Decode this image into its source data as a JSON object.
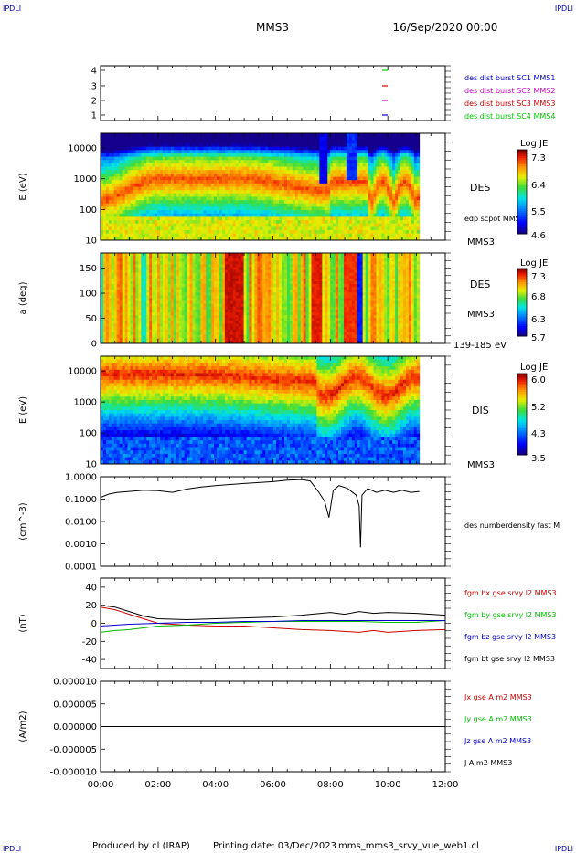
{
  "corner_mark": "IPDLI",
  "header": {
    "mission": "MMS3",
    "date": "16/Sep/2020 00:00"
  },
  "footer": {
    "produced_by": "Produced by cl (IRAP)",
    "printing_date": "Printing date: 03/Dec/2023",
    "script_name": "mms_mms3_srvy_vue_web1.cl"
  },
  "colors": {
    "mms1": "#0000cc",
    "mms2": "#cc00cc",
    "mms3": "#cc0000",
    "mms4": "#00cc00",
    "bx": "#cc0000",
    "by": "#00bb00",
    "bz": "#0000cc",
    "bt": "#000000"
  },
  "chart_data": [
    {
      "type": "scatter",
      "ytick_labels": [
        "1",
        "2",
        "3",
        "4"
      ],
      "ylim": [
        0.5,
        4.5
      ],
      "xlim": [
        0,
        12
      ],
      "legend": [
        "des dist burst SC1 MMS1",
        "des dist burst SC2 MMS2",
        "des dist burst SC3 MMS3",
        "des dist burst SC4 MMS4"
      ],
      "markers": [
        {
          "x": 9.9,
          "y": 4,
          "color": "#00cc00"
        },
        {
          "x": 9.9,
          "y": 3,
          "color": "#cc0000"
        },
        {
          "x": 9.9,
          "y": 2,
          "color": "#cc00cc"
        },
        {
          "x": 9.9,
          "y": 1,
          "color": "#0000cc"
        }
      ]
    },
    {
      "type": "heatmap",
      "ylabel": "E (eV)",
      "yscale": "log",
      "ylim": [
        10,
        30000
      ],
      "ytick_labels": [
        "10",
        "100",
        "1000",
        "10000"
      ],
      "xlim": [
        0,
        12
      ],
      "data_end": 11.1,
      "right_labels": [
        "DES",
        "edp scpot MMS3",
        "MMS3"
      ],
      "colorbar": {
        "title": "Log JE",
        "ticks": [
          "7.3",
          "6.4",
          "5.5",
          "4.6"
        ],
        "min": 4.6,
        "max": 7.3
      }
    },
    {
      "type": "heatmap",
      "ylabel": "a (deg)",
      "ylim": [
        0,
        180
      ],
      "ytick_labels": [
        "0",
        "50",
        "100",
        "150"
      ],
      "xlim": [
        0,
        12
      ],
      "data_end": 11.1,
      "right_labels": [
        "DES",
        "MMS3",
        "139-185 eV"
      ],
      "colorbar": {
        "title": "Log JE",
        "ticks": [
          "7.3",
          "6.8",
          "6.3",
          "5.7"
        ],
        "min": 5.7,
        "max": 7.3
      }
    },
    {
      "type": "heatmap",
      "ylabel": "E (eV)",
      "yscale": "log",
      "ylim": [
        10,
        30000
      ],
      "ytick_labels": [
        "10",
        "100",
        "1000",
        "10000"
      ],
      "xlim": [
        0,
        12
      ],
      "data_end": 11.1,
      "right_labels": [
        "DIS",
        "MMS3"
      ],
      "colorbar": {
        "title": "Log JE",
        "ticks": [
          "6.0",
          "5.2",
          "4.3",
          "3.5"
        ],
        "min": 3.5,
        "max": 6.0
      }
    },
    {
      "type": "line",
      "ylabel": "(cm^-3)",
      "yscale": "log",
      "ylim": [
        0.0001,
        1.0
      ],
      "ytick_labels": [
        "0.0001",
        "0.0010",
        "0.0100",
        "0.1000",
        "1.0000"
      ],
      "xlim": [
        0,
        12
      ],
      "legend": [
        "des numberdensity fast M"
      ],
      "series": [
        {
          "x": [
            0,
            0.3,
            0.6,
            1.0,
            1.5,
            2.0,
            2.5,
            3.0,
            3.5,
            4.0,
            4.5,
            5.0,
            5.5,
            6.0,
            6.5,
            7.0,
            7.3,
            7.6,
            7.8,
            7.95,
            8.1,
            8.3,
            8.6,
            8.9,
            9.0,
            9.05,
            9.1,
            9.3,
            9.6,
            9.9,
            10.2,
            10.5,
            10.8,
            11.1
          ],
          "y": [
            0.12,
            0.17,
            0.2,
            0.22,
            0.25,
            0.24,
            0.2,
            0.28,
            0.35,
            0.4,
            0.45,
            0.5,
            0.55,
            0.6,
            0.7,
            0.75,
            0.65,
            0.2,
            0.08,
            0.015,
            0.25,
            0.4,
            0.3,
            0.15,
            0.05,
            0.0007,
            0.15,
            0.3,
            0.2,
            0.25,
            0.2,
            0.25,
            0.2,
            0.22
          ]
        }
      ]
    },
    {
      "type": "line",
      "ylabel": "(nT)",
      "ylim": [
        -50,
        50
      ],
      "ytick_labels": [
        "-40",
        "-20",
        "0",
        "20",
        "40"
      ],
      "xlim": [
        0,
        12
      ],
      "legend": [
        "fgm bx gse srvy l2 MMS3",
        "fgm by gse srvy l2 MMS3",
        "fgm bz gse srvy l2 MMS3",
        "fgm bt gse srvy l2 MMS3"
      ],
      "series": [
        {
          "name": "fgm bx gse srvy l2 MMS3",
          "color": "#cc0000",
          "x": [
            0,
            0.5,
            1.0,
            1.5,
            2.0,
            3.0,
            4.0,
            5.0,
            6.0,
            7.0,
            8.0,
            9.0,
            9.5,
            10.0,
            11.0,
            12.0
          ],
          "y": [
            18,
            15,
            10,
            5,
            0,
            -2,
            -3,
            -3,
            -5,
            -7,
            -8,
            -10,
            -8,
            -10,
            -8,
            -7
          ]
        },
        {
          "name": "fgm by gse srvy l2 MMS3",
          "color": "#00bb00",
          "x": [
            0,
            0.5,
            1.0,
            1.5,
            2.0,
            3.0,
            4.0,
            5.0,
            6.0,
            7.0,
            8.0,
            9.0,
            10.0,
            11.0,
            12.0
          ],
          "y": [
            -10,
            -8,
            -7,
            -5,
            -3,
            -2,
            0,
            1,
            2,
            2,
            2,
            2,
            1,
            1,
            3
          ]
        },
        {
          "name": "fgm bz gse srvy l2 MMS3",
          "color": "#0000cc",
          "x": [
            0,
            1.0,
            2.0,
            3.0,
            4.0,
            5.0,
            6.0,
            7.0,
            8.0,
            9.0,
            10.0,
            11.0,
            12.0
          ],
          "y": [
            -3,
            -1,
            0,
            1,
            1,
            2,
            2,
            3,
            3,
            3,
            3,
            3,
            3
          ]
        },
        {
          "name": "fgm bt gse srvy l2 MMS3",
          "color": "#000000",
          "x": [
            0,
            0.5,
            1.0,
            1.5,
            2.0,
            3.0,
            4.0,
            5.0,
            6.0,
            7.0,
            8.0,
            8.5,
            9.0,
            9.5,
            10.0,
            11.0,
            12.0
          ],
          "y": [
            20,
            18,
            13,
            8,
            5,
            4,
            5,
            6,
            7,
            9,
            12,
            10,
            13,
            11,
            12,
            11,
            9
          ]
        }
      ]
    },
    {
      "type": "line",
      "ylabel": "(A/m2)",
      "ylim": [
        -1e-05,
        1e-05
      ],
      "ytick_labels": [
        "-0.000010",
        "-0.000005",
        "0.000000",
        "0.000005",
        "0.000010"
      ],
      "xlim": [
        0,
        12
      ],
      "xtick_labels": [
        "00:00",
        "02:00",
        "04:00",
        "06:00",
        "08:00",
        "10:00",
        "12:00"
      ],
      "legend": [
        "Jx gse A m2 MMS3",
        "Jy gse A m2 MMS3",
        "Jz gse A m2 MMS3",
        "J A m2 MMS3"
      ],
      "series": [
        {
          "name": "J A m2 MMS3",
          "color": "#000000",
          "x": [
            0,
            12
          ],
          "y": [
            0,
            0
          ]
        }
      ]
    }
  ]
}
